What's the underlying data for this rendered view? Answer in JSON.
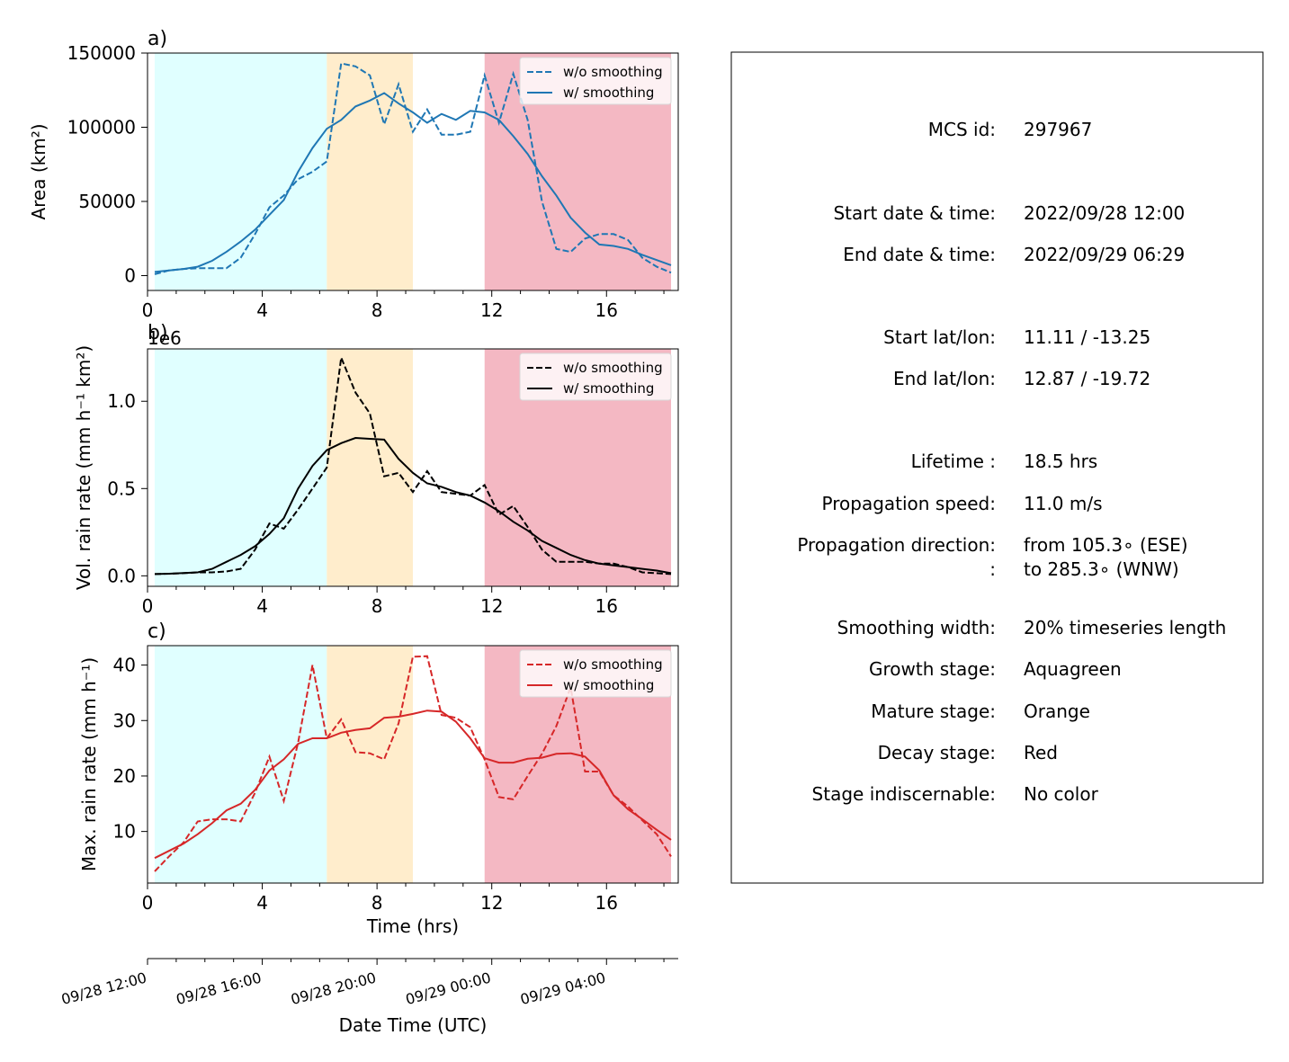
{
  "colors": {
    "growth": "#e0ffff",
    "mature": "#ffedcc",
    "decay": "#f4b8c3",
    "area": "#1f77b4",
    "volrain": "#000000",
    "maxrain": "#d62728"
  },
  "stages": [
    {
      "name": "growth",
      "start": 0.25,
      "end": 6.25
    },
    {
      "name": "mature",
      "start": 6.25,
      "end": 9.25
    },
    {
      "name": "decay",
      "start": 11.75,
      "end": 18.25
    }
  ],
  "chart_data": [
    {
      "id": "a",
      "type": "line",
      "panel_label": "a)",
      "ylabel": "Area  (km²)",
      "xlim": [
        0,
        18.5
      ],
      "ylim": [
        -10000,
        150000
      ],
      "yticks": [
        0,
        50000,
        100000,
        150000
      ],
      "ytick_labels": [
        "0",
        "50000",
        "100000",
        "150000"
      ],
      "xticks": [
        0,
        4,
        8,
        12,
        16
      ],
      "xtick_labels": [
        "0",
        "4",
        "8",
        "12",
        "16"
      ],
      "legend": "top-right",
      "series": [
        {
          "name": "w/o smoothing",
          "style": "dashed",
          "x": [
            0.25,
            0.75,
            1.25,
            1.75,
            2.25,
            2.75,
            3.25,
            3.75,
            4.25,
            4.75,
            5.25,
            5.75,
            6.25,
            6.75,
            7.25,
            7.75,
            8.25,
            8.75,
            9.25,
            9.75,
            10.25,
            10.75,
            11.25,
            11.75,
            12.25,
            12.75,
            13.25,
            13.75,
            14.25,
            14.75,
            15.25,
            15.75,
            16.25,
            16.75,
            17.25,
            17.75,
            18.25
          ],
          "y": [
            1000,
            3500,
            4500,
            5000,
            5000,
            5000,
            12000,
            28000,
            46000,
            54000,
            65000,
            70000,
            77000,
            143000,
            141000,
            135000,
            102000,
            129000,
            97000,
            112000,
            95000,
            95000,
            97000,
            135000,
            103000,
            136000,
            105000,
            50000,
            18000,
            16000,
            25000,
            28000,
            28000,
            24000,
            12000,
            6000,
            2000
          ]
        },
        {
          "name": "w/ smoothing",
          "style": "solid",
          "x": [
            0.25,
            0.75,
            1.25,
            1.75,
            2.25,
            2.75,
            3.25,
            3.75,
            4.25,
            4.75,
            5.25,
            5.75,
            6.25,
            6.75,
            7.25,
            7.75,
            8.25,
            8.75,
            9.25,
            9.75,
            10.25,
            10.75,
            11.25,
            11.75,
            12.25,
            12.75,
            13.25,
            13.75,
            14.25,
            14.75,
            15.25,
            15.75,
            16.25,
            16.75,
            17.25,
            17.75,
            18.25
          ],
          "y": [
            2500,
            3500,
            4500,
            6000,
            10000,
            16000,
            23000,
            31000,
            41000,
            51000,
            70000,
            86000,
            99000,
            105000,
            114000,
            118000,
            123000,
            116000,
            110000,
            103000,
            109000,
            105000,
            111000,
            110000,
            105000,
            94000,
            82000,
            67000,
            54000,
            39000,
            29000,
            21000,
            20000,
            18000,
            14000,
            10500,
            7000
          ]
        }
      ]
    },
    {
      "id": "b",
      "type": "line",
      "panel_label": "b)",
      "offset_label": "1e6",
      "ylabel": "Vol. rain rate (mm h⁻¹ km²)",
      "xlim": [
        0,
        18.5
      ],
      "ylim": [
        -0.06,
        1.3
      ],
      "yticks": [
        0.0,
        0.5,
        1.0
      ],
      "ytick_labels": [
        "0.0",
        "0.5",
        "1.0"
      ],
      "xticks": [
        0,
        4,
        8,
        12,
        16
      ],
      "xtick_labels": [
        "0",
        "4",
        "8",
        "12",
        "16"
      ],
      "legend": "top-right",
      "series": [
        {
          "name": "w/o smoothing",
          "style": "dashed",
          "x": [
            0.25,
            0.75,
            1.25,
            1.75,
            2.25,
            2.75,
            3.25,
            3.75,
            4.25,
            4.75,
            5.25,
            5.75,
            6.25,
            6.75,
            7.25,
            7.75,
            8.25,
            8.75,
            9.25,
            9.75,
            10.25,
            10.75,
            11.25,
            11.75,
            12.25,
            12.75,
            13.25,
            13.75,
            14.25,
            14.75,
            15.25,
            15.75,
            16.25,
            16.75,
            17.25,
            17.75,
            18.25
          ],
          "y": [
            0.01,
            0.012,
            0.015,
            0.02,
            0.02,
            0.025,
            0.04,
            0.15,
            0.3,
            0.27,
            0.38,
            0.5,
            0.62,
            1.25,
            1.05,
            0.93,
            0.57,
            0.59,
            0.48,
            0.6,
            0.48,
            0.47,
            0.46,
            0.52,
            0.35,
            0.4,
            0.28,
            0.15,
            0.08,
            0.08,
            0.08,
            0.07,
            0.07,
            0.05,
            0.02,
            0.015,
            0.01
          ]
        },
        {
          "name": "w/ smoothing",
          "style": "solid",
          "x": [
            0.25,
            0.75,
            1.25,
            1.75,
            2.25,
            2.75,
            3.25,
            3.75,
            4.25,
            4.75,
            5.25,
            5.75,
            6.25,
            6.75,
            7.25,
            7.75,
            8.25,
            8.75,
            9.25,
            9.75,
            10.25,
            10.75,
            11.25,
            11.75,
            12.25,
            12.75,
            13.25,
            13.75,
            14.25,
            14.75,
            15.25,
            15.75,
            16.25,
            16.75,
            17.25,
            17.75,
            18.25
          ],
          "y": [
            0.01,
            0.012,
            0.016,
            0.02,
            0.04,
            0.08,
            0.12,
            0.17,
            0.24,
            0.33,
            0.5,
            0.63,
            0.72,
            0.76,
            0.79,
            0.785,
            0.78,
            0.67,
            0.59,
            0.53,
            0.51,
            0.48,
            0.46,
            0.42,
            0.37,
            0.31,
            0.26,
            0.2,
            0.16,
            0.12,
            0.09,
            0.07,
            0.06,
            0.05,
            0.04,
            0.03,
            0.015
          ]
        }
      ]
    },
    {
      "id": "c",
      "type": "line",
      "panel_label": "c)",
      "ylabel": "Max. rain rate  (mm h⁻¹)",
      "xlabel": "Time (hrs)",
      "xlim": [
        0,
        18.5
      ],
      "ylim": [
        0.7,
        43.5
      ],
      "yticks": [
        10,
        20,
        30,
        40
      ],
      "ytick_labels": [
        "10",
        "20",
        "30",
        "40"
      ],
      "xticks": [
        0,
        4,
        8,
        12,
        16
      ],
      "xtick_labels": [
        "0",
        "4",
        "8",
        "12",
        "16"
      ],
      "legend": "top-right",
      "series": [
        {
          "name": "w/o smoothing",
          "style": "dashed",
          "x": [
            0.25,
            0.75,
            1.25,
            1.75,
            2.25,
            2.75,
            3.25,
            3.75,
            4.25,
            4.75,
            5.25,
            5.75,
            6.25,
            6.75,
            7.25,
            7.75,
            8.25,
            8.75,
            9.25,
            9.75,
            10.25,
            10.75,
            11.25,
            11.75,
            12.25,
            12.75,
            13.25,
            13.75,
            14.25,
            14.75,
            15.25,
            15.75,
            16.25,
            16.75,
            17.25,
            17.75,
            18.25
          ],
          "y": [
            2.8,
            5.5,
            8,
            11.8,
            12.2,
            12.2,
            11.8,
            17,
            23.5,
            15.5,
            26,
            40,
            26.8,
            30.2,
            24.3,
            24.1,
            23,
            29.5,
            41.5,
            41.6,
            31,
            30.5,
            28.8,
            23,
            16.2,
            15.8,
            20,
            24,
            29,
            36,
            20.8,
            20.8,
            16.5,
            14.5,
            12,
            9.5,
            5.5
          ]
        },
        {
          "name": "w/ smoothing",
          "style": "solid",
          "x": [
            0.25,
            0.75,
            1.25,
            1.75,
            2.25,
            2.75,
            3.25,
            3.75,
            4.25,
            4.75,
            5.25,
            5.75,
            6.25,
            6.75,
            7.25,
            7.75,
            8.25,
            8.75,
            9.25,
            9.75,
            10.25,
            10.75,
            11.25,
            11.75,
            12.25,
            12.75,
            13.25,
            13.75,
            14.25,
            14.75,
            15.25,
            15.75,
            16.25,
            16.75,
            17.25,
            17.75,
            18.25
          ],
          "y": [
            5.2,
            6.5,
            7.8,
            9.5,
            11.5,
            13.8,
            15,
            17.5,
            21,
            23,
            25.8,
            26.8,
            26.8,
            27.8,
            28.3,
            28.6,
            30.5,
            30.7,
            31.2,
            31.8,
            31.6,
            29.8,
            26.8,
            23.2,
            22.4,
            22.4,
            23.1,
            23.3,
            24,
            24.1,
            23.5,
            21,
            16.5,
            14,
            12.2,
            10.3,
            8.5
          ]
        }
      ]
    },
    {
      "id": "d",
      "type": "line",
      "xlabel": "Date Time (UTC)",
      "xlim": [
        0,
        18.5
      ],
      "xticks": [
        0,
        4,
        8,
        12,
        16
      ],
      "xtick_labels": [
        "09/28 12:00",
        "09/28 16:00",
        "09/28 20:00",
        "09/29 00:00",
        "09/29 04:00"
      ],
      "series": []
    }
  ],
  "info": {
    "rows": [
      {
        "key": "MCS id:",
        "value": "297967"
      },
      {
        "key": "Start date & time:",
        "value": "2022/09/28 12:00"
      },
      {
        "key": "End date & time:",
        "value": "2022/09/29 06:29"
      },
      {
        "key": "Start lat/lon:",
        "value": "11.11 / -13.25"
      },
      {
        "key": "End lat/lon:",
        "value": "12.87 / -19.72"
      },
      {
        "key": "Lifetime :",
        "value": "18.5 hrs"
      },
      {
        "key": "Propagation speed:",
        "value": "11.0 m/s"
      },
      {
        "key": "Propagation direction:",
        "value": "from 105.3∘ (ESE)"
      },
      {
        "key": ":",
        "value": "to   285.3∘ (WNW)"
      },
      {
        "key": "Smoothing width:",
        "value": "20% timeseries length"
      },
      {
        "key": "Growth stage:",
        "value": "Aquagreen"
      },
      {
        "key": "Mature stage:",
        "value": "Orange"
      },
      {
        "key": "Decay stage:",
        "value": "Red"
      },
      {
        "key": "Stage indiscernable:",
        "value": "No color"
      }
    ]
  }
}
